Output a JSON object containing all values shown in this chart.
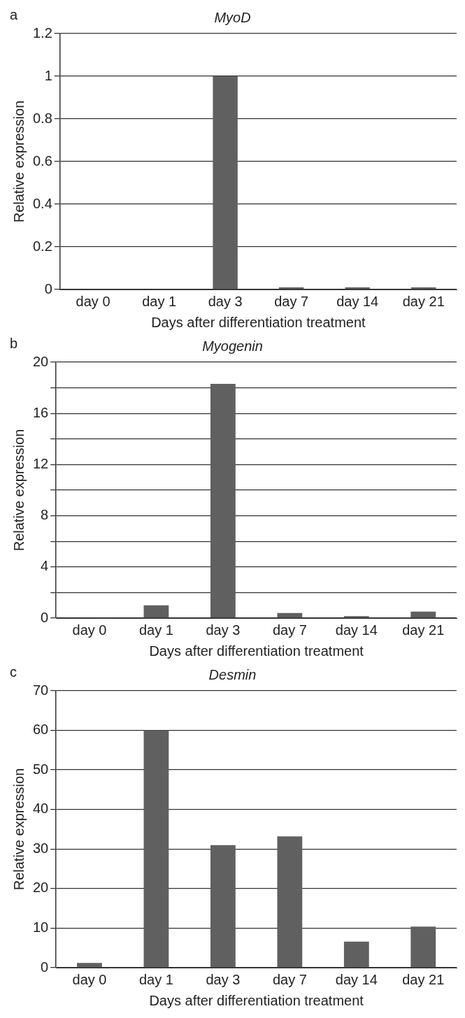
{
  "chart_data": [
    {
      "type": "bar",
      "title": "MyoD",
      "xlabel": "Days after differentiation treatment",
      "ylabel": "Relative expression",
      "annotations": [
        "a"
      ],
      "categories": [
        "day 0",
        "day 1",
        "day 3",
        "day 7",
        "day 14",
        "day 21"
      ],
      "values": [
        0,
        0,
        1,
        0.01,
        0.01,
        0.01
      ],
      "color": "#606060",
      "ylim": [
        0,
        1.2
      ],
      "yticks": [
        0,
        0.2,
        0.4,
        0.6,
        0.8,
        1,
        1.2
      ],
      "grid": "y"
    },
    {
      "type": "bar",
      "title": "Myogenin",
      "xlabel": "Days after differentiation treatment",
      "ylabel": "Relative expression",
      "annotations": [
        "b"
      ],
      "categories": [
        "day 0",
        "day 1",
        "day 3",
        "day 7",
        "day 14",
        "day 21"
      ],
      "values": [
        0,
        1,
        18.3,
        0.4,
        0.15,
        0.5
      ],
      "color": "#606060",
      "ylim": [
        0,
        20
      ],
      "yticks": [
        0,
        {
          "value": 2,
          "label": null
        },
        4,
        {
          "value": 6,
          "label": null
        },
        8,
        {
          "value": 10,
          "label": null
        },
        12,
        {
          "value": 14,
          "label": null
        },
        16,
        {
          "value": 18,
          "label": null
        },
        20
      ],
      "grid": "y"
    },
    {
      "type": "bar",
      "title": "Desmin",
      "xlabel": "Days after differentiation treatment",
      "ylabel": "Relative expression",
      "annotations": [
        "c"
      ],
      "categories": [
        "day 0",
        "day 1",
        "day 3",
        "day 7",
        "day 14",
        "day 21"
      ],
      "values": [
        1.2,
        60,
        31,
        33.2,
        6.6,
        10.4
      ],
      "color": "#606060",
      "ylim": [
        0,
        70
      ],
      "yticks": [
        0,
        10,
        20,
        30,
        40,
        50,
        60,
        70
      ],
      "grid": "y"
    }
  ]
}
